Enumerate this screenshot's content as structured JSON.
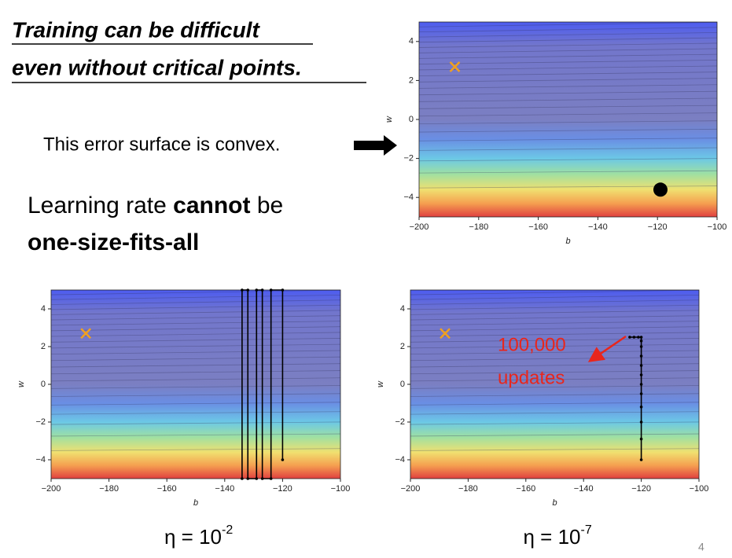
{
  "slide": {
    "title_lines": [
      "Training can be difficult",
      "even without critical points."
    ],
    "convex_note": "This error surface is convex.",
    "lr_line1": [
      "Learning rate ",
      "cannot",
      " be"
    ],
    "lr_line2": "one-size-fits-all",
    "page_number": "4"
  },
  "chart_data": [
    {
      "type": "contour",
      "xlabel": "b",
      "ylabel": "w",
      "xlim": [
        -200,
        -100
      ],
      "ylim": [
        -5,
        5
      ],
      "xticks": [
        {
          "value": -200,
          "label": "−200"
        },
        {
          "value": -180,
          "label": "−180"
        },
        {
          "value": -160,
          "label": "−160"
        },
        {
          "value": -140,
          "label": "−140"
        },
        {
          "value": -120,
          "label": "−120"
        },
        {
          "value": -100,
          "label": "−100"
        }
      ],
      "yticks": [
        {
          "value": -4,
          "label": "−4"
        },
        {
          "value": -2,
          "label": "−2"
        },
        0,
        2,
        4
      ],
      "target": {
        "x": -188,
        "y": 2.7,
        "color": "#f0a020"
      },
      "start": {
        "x": -119,
        "y": -3.6,
        "color": "#000000"
      }
    },
    {
      "type": "contour",
      "xlabel": "b",
      "ylabel": "w",
      "xlim": [
        -200,
        -100
      ],
      "ylim": [
        -5,
        5
      ],
      "xticks": [
        {
          "value": -200,
          "label": "−200"
        },
        {
          "value": -180,
          "label": "−180"
        },
        {
          "value": -160,
          "label": "−160"
        },
        {
          "value": -140,
          "label": "−140"
        },
        {
          "value": -120,
          "label": "−120"
        },
        {
          "value": -100,
          "label": "−100"
        }
      ],
      "yticks": [
        {
          "value": -4,
          "label": "−4"
        },
        {
          "value": -2,
          "label": "−2"
        },
        0,
        2,
        4
      ],
      "target": {
        "x": -188,
        "y": 2.7,
        "color": "#f0a020"
      },
      "trajectory": {
        "color": "#000000",
        "x": [
          -120,
          -120,
          -124,
          -124,
          -127,
          -127,
          -129,
          -129,
          -132,
          -132,
          -134,
          -134
        ],
        "y": [
          -4,
          5,
          5,
          -5,
          -5,
          5,
          5,
          -5,
          -5,
          5,
          5,
          -5
        ]
      },
      "caption": {
        "base": "η = 10",
        "exponent": "-2"
      }
    },
    {
      "type": "contour",
      "xlabel": "b",
      "ylabel": "w",
      "xlim": [
        -200,
        -100
      ],
      "ylim": [
        -5,
        5
      ],
      "xticks": [
        {
          "value": -200,
          "label": "−200"
        },
        {
          "value": -180,
          "label": "−180"
        },
        {
          "value": -160,
          "label": "−160"
        },
        {
          "value": -140,
          "label": "−140"
        },
        {
          "value": -120,
          "label": "−120"
        },
        {
          "value": -100,
          "label": "−100"
        }
      ],
      "yticks": [
        {
          "value": -4,
          "label": "−4"
        },
        {
          "value": -2,
          "label": "−2"
        },
        0,
        2,
        4
      ],
      "target": {
        "x": -188,
        "y": 2.7,
        "color": "#f0a020"
      },
      "trajectory": {
        "color": "#000000",
        "x": [
          -120,
          -120,
          -120,
          -120,
          -120,
          -120,
          -120,
          -120,
          -120,
          -120,
          -120,
          -120,
          -121,
          -122.5,
          -124
        ],
        "y": [
          -4,
          -2.9,
          -2,
          -1.2,
          -0.5,
          0,
          0.5,
          1,
          1.5,
          2,
          2.3,
          2.5,
          2.5,
          2.5,
          2.5
        ]
      },
      "annotation": [
        "100,000",
        "updates"
      ],
      "caption": {
        "base": "η = 10",
        "exponent": "-7"
      }
    }
  ]
}
